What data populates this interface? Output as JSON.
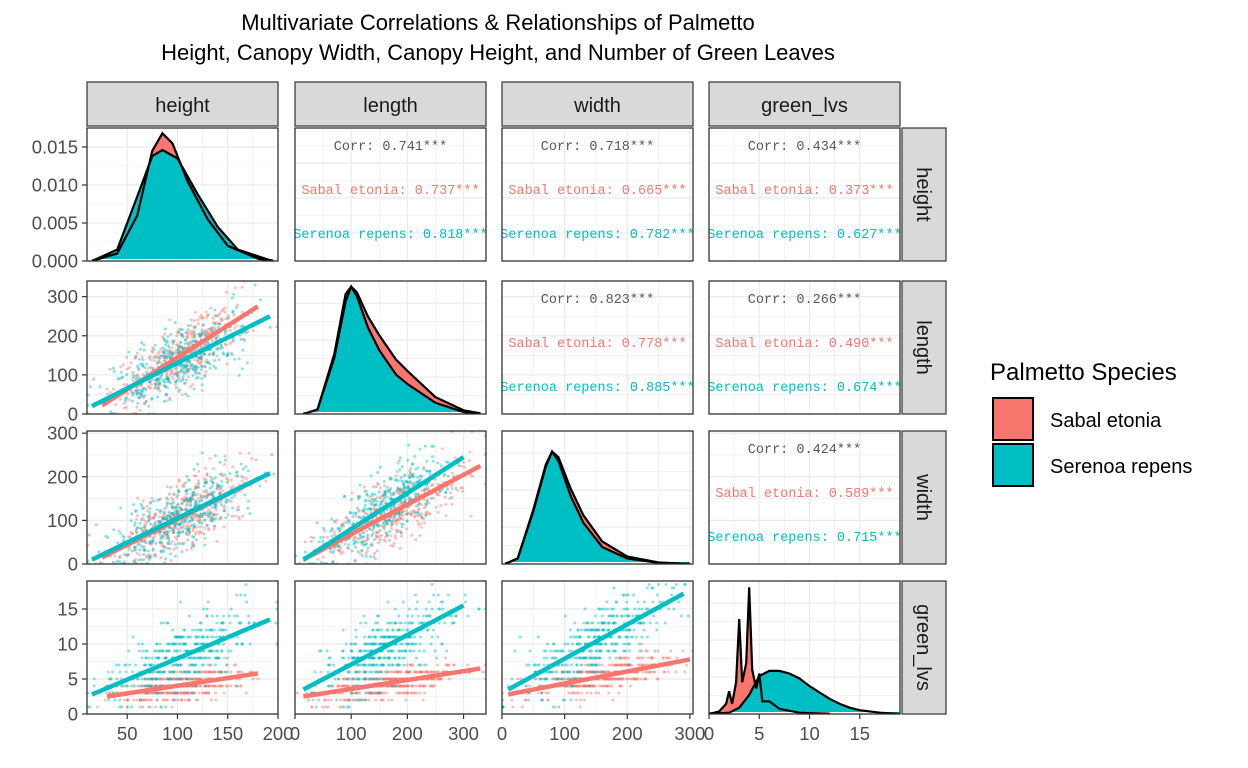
{
  "chart_data": {
    "type": "scatter",
    "subtype": "pairs-matrix",
    "title_lines": [
      "Multivariate Correlations & Relationships of Palmetto",
      "Height, Canopy Width, Canopy Height, and Number of Green Leaves"
    ],
    "variables": [
      "height",
      "length",
      "width",
      "green_lvs"
    ],
    "legend": {
      "title": "Palmetto Species",
      "position": "right",
      "entries": [
        {
          "label": "Sabal etonia",
          "color": "#F8766D"
        },
        {
          "label": "Serenoa repens",
          "color": "#00BFC4"
        }
      ]
    },
    "colors": {
      "sabal": "#F8766D",
      "serenoa": "#00BFC4",
      "strip_fill": "#D9D9D9",
      "grid": "#EBEBEB",
      "corr_text": "#595959"
    },
    "axes": {
      "height": {
        "range": [
          10,
          200
        ],
        "ticks": [
          50,
          100,
          150,
          200
        ]
      },
      "length": {
        "range": [
          0,
          340
        ],
        "ticks": [
          0,
          100,
          200,
          300
        ]
      },
      "width": {
        "range": [
          0,
          305
        ],
        "ticks": [
          0,
          100,
          200,
          300
        ]
      },
      "green_lvs": {
        "range": [
          0,
          19
        ],
        "ticks": [
          0,
          5,
          10,
          15
        ]
      },
      "density_height": {
        "range": [
          0,
          0.0175
        ],
        "ticks": [
          0.0,
          0.005,
          0.01,
          0.015
        ],
        "tick_labels": [
          "0.000",
          "0.005",
          "0.010",
          "0.015"
        ]
      }
    },
    "correlations": [
      {
        "row": "height",
        "col": "length",
        "overall": "Corr: 0.741***",
        "sabal": "Sabal etonia: 0.737***",
        "serenoa": "Serenoa repens: 0.818***"
      },
      {
        "row": "height",
        "col": "width",
        "overall": "Corr: 0.718***",
        "sabal": "Sabal etonia: 0.665***",
        "serenoa": "Serenoa repens: 0.782***"
      },
      {
        "row": "height",
        "col": "green_lvs",
        "overall": "Corr: 0.434***",
        "sabal": "Sabal etonia: 0.373***",
        "serenoa": "Serenoa repens: 0.627***"
      },
      {
        "row": "length",
        "col": "width",
        "overall": "Corr: 0.823***",
        "sabal": "Sabal etonia: 0.778***",
        "serenoa": "Serenoa repens: 0.885***"
      },
      {
        "row": "length",
        "col": "green_lvs",
        "overall": "Corr: 0.266***",
        "sabal": "Sabal etonia: 0.490***",
        "serenoa": "Serenoa repens: 0.674***"
      },
      {
        "row": "width",
        "col": "green_lvs",
        "overall": "Corr: 0.424***",
        "sabal": "Sabal etonia: 0.589***",
        "serenoa": "Serenoa repens: 0.715***"
      }
    ],
    "regression_lines": [
      {
        "x": "height",
        "y": "length",
        "sabal": [
          [
            25,
            22
          ],
          [
            180,
            275
          ]
        ],
        "serenoa": [
          [
            15,
            20
          ],
          [
            192,
            250
          ]
        ]
      },
      {
        "x": "height",
        "y": "width",
        "sabal": [
          [
            25,
            15
          ],
          [
            180,
            195
          ]
        ],
        "serenoa": [
          [
            15,
            10
          ],
          [
            192,
            208
          ]
        ]
      },
      {
        "x": "height",
        "y": "green_lvs",
        "sabal": [
          [
            30,
            2.5
          ],
          [
            180,
            5.8
          ]
        ],
        "serenoa": [
          [
            15,
            2.8
          ],
          [
            192,
            13.5
          ]
        ]
      },
      {
        "x": "length",
        "y": "width",
        "sabal": [
          [
            15,
            10
          ],
          [
            330,
            225
          ]
        ],
        "serenoa": [
          [
            15,
            10
          ],
          [
            300,
            245
          ]
        ]
      },
      {
        "x": "length",
        "y": "green_lvs",
        "sabal": [
          [
            15,
            2.5
          ],
          [
            330,
            6.5
          ]
        ],
        "serenoa": [
          [
            15,
            3.5
          ],
          [
            300,
            15.5
          ]
        ]
      },
      {
        "x": "width",
        "y": "green_lvs",
        "sabal": [
          [
            10,
            2.8
          ],
          [
            300,
            7.8
          ]
        ],
        "serenoa": [
          [
            10,
            3.5
          ],
          [
            290,
            17.2
          ]
        ]
      }
    ],
    "densities": {
      "height": {
        "sabal": [
          [
            15,
            0
          ],
          [
            40,
            0.001
          ],
          [
            60,
            0.006
          ],
          [
            75,
            0.0145
          ],
          [
            85,
            0.0168
          ],
          [
            95,
            0.0155
          ],
          [
            110,
            0.0105
          ],
          [
            130,
            0.0055
          ],
          [
            150,
            0.002
          ],
          [
            180,
            0.0003
          ],
          [
            195,
            0
          ]
        ],
        "serenoa": [
          [
            15,
            0
          ],
          [
            40,
            0.0015
          ],
          [
            60,
            0.0085
          ],
          [
            75,
            0.0138
          ],
          [
            85,
            0.0146
          ],
          [
            100,
            0.0135
          ],
          [
            120,
            0.0088
          ],
          [
            140,
            0.0045
          ],
          [
            160,
            0.0015
          ],
          [
            190,
            0.0002
          ],
          [
            195,
            0
          ]
        ]
      },
      "length": {
        "sabal": [
          [
            15,
            0
          ],
          [
            40,
            12
          ],
          [
            70,
            150
          ],
          [
            90,
            300
          ],
          [
            100,
            340
          ],
          [
            110,
            325
          ],
          [
            130,
            260
          ],
          [
            150,
            210
          ],
          [
            180,
            145
          ],
          [
            200,
            115
          ],
          [
            250,
            45
          ],
          [
            300,
            10
          ],
          [
            330,
            2
          ]
        ],
        "serenoa": [
          [
            15,
            0
          ],
          [
            40,
            12
          ],
          [
            70,
            160
          ],
          [
            90,
            320
          ],
          [
            100,
            340
          ],
          [
            110,
            315
          ],
          [
            130,
            230
          ],
          [
            150,
            170
          ],
          [
            180,
            105
          ],
          [
            200,
            80
          ],
          [
            250,
            30
          ],
          [
            300,
            5
          ],
          [
            330,
            0
          ]
        ]
      },
      "width": {
        "sabal": [
          [
            5,
            0
          ],
          [
            25,
            15
          ],
          [
            50,
            140
          ],
          [
            70,
            260
          ],
          [
            80,
            300
          ],
          [
            90,
            285
          ],
          [
            110,
            200
          ],
          [
            130,
            130
          ],
          [
            160,
            60
          ],
          [
            200,
            20
          ],
          [
            250,
            4
          ],
          [
            300,
            0
          ]
        ],
        "serenoa": [
          [
            5,
            0
          ],
          [
            25,
            15
          ],
          [
            50,
            145
          ],
          [
            70,
            265
          ],
          [
            80,
            300
          ],
          [
            90,
            275
          ],
          [
            110,
            180
          ],
          [
            130,
            110
          ],
          [
            160,
            45
          ],
          [
            200,
            15
          ],
          [
            250,
            3
          ],
          [
            300,
            0
          ]
        ]
      },
      "green_lvs": {
        "sabal": [
          [
            0,
            0
          ],
          [
            1,
            0.02
          ],
          [
            1.7,
            0.08
          ],
          [
            2,
            0.18
          ],
          [
            2.3,
            0.08
          ],
          [
            2.7,
            0.25
          ],
          [
            3,
            0.75
          ],
          [
            3.3,
            0.25
          ],
          [
            3.7,
            0.4
          ],
          [
            4,
            1.0
          ],
          [
            4.3,
            0.35
          ],
          [
            4.7,
            0.2
          ],
          [
            5,
            0.32
          ],
          [
            5.3,
            0.1
          ],
          [
            6,
            0.1
          ],
          [
            7,
            0.04
          ],
          [
            9,
            0.01
          ],
          [
            12,
            0
          ]
        ],
        "serenoa": [
          [
            0,
            0
          ],
          [
            2,
            0.01
          ],
          [
            3,
            0.05
          ],
          [
            4,
            0.15
          ],
          [
            5,
            0.3
          ],
          [
            6,
            0.34
          ],
          [
            7,
            0.34
          ],
          [
            8,
            0.32
          ],
          [
            9,
            0.28
          ],
          [
            10,
            0.22
          ],
          [
            11,
            0.17
          ],
          [
            12,
            0.12
          ],
          [
            13,
            0.08
          ],
          [
            14,
            0.05
          ],
          [
            15,
            0.03
          ],
          [
            17,
            0.01
          ],
          [
            19,
            0
          ]
        ]
      }
    }
  }
}
